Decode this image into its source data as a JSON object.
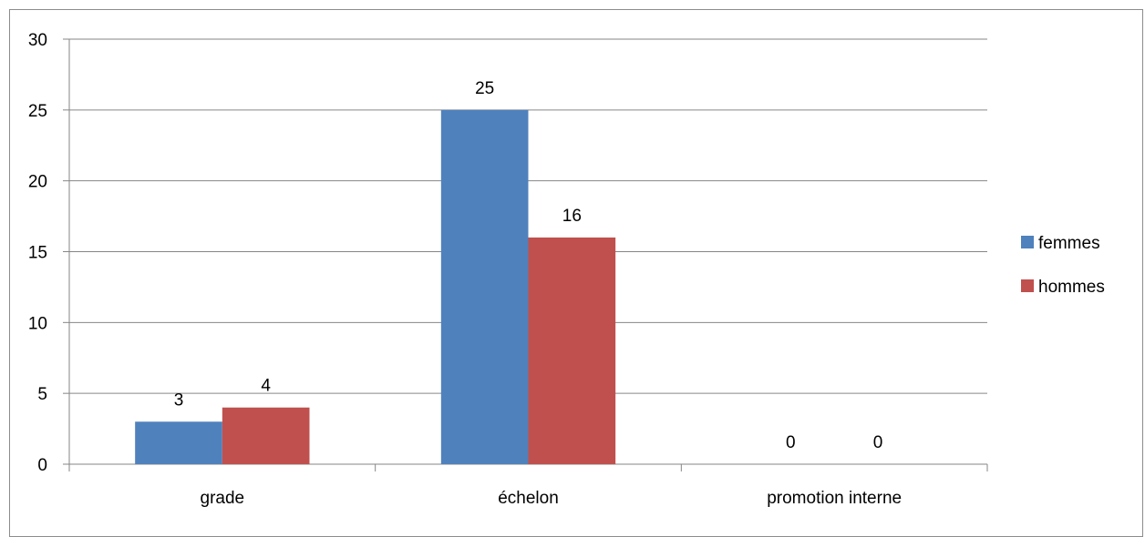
{
  "chart_data": {
    "type": "bar",
    "title": "",
    "xlabel": "",
    "ylabel": "",
    "categories": [
      "grade",
      "échelon",
      "promotion interne"
    ],
    "series": [
      {
        "name": "femmes",
        "values": [
          3,
          25,
          0
        ],
        "color": "#4F81BD"
      },
      {
        "name": "hommes",
        "values": [
          4,
          16,
          0
        ],
        "color": "#C0504D"
      }
    ],
    "ylim": [
      0,
      30
    ],
    "yticks": [
      "0",
      "5",
      "10",
      "15",
      "20",
      "25",
      "30"
    ],
    "data_labels": true,
    "grid": true,
    "legend_position": "right"
  }
}
